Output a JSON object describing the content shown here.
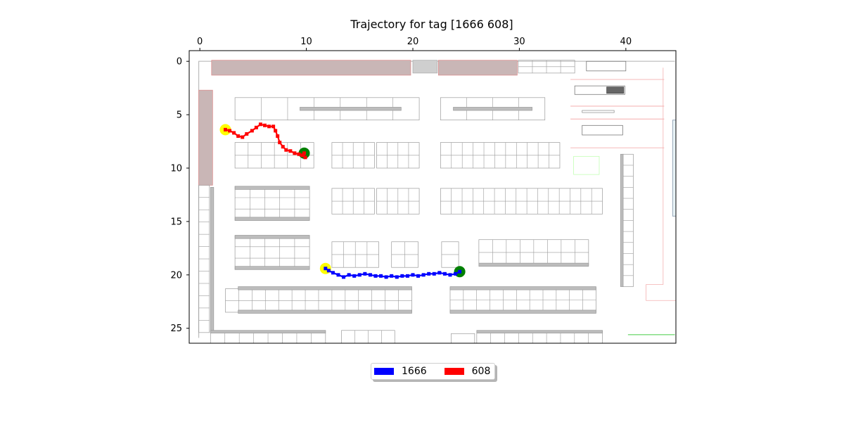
{
  "chart_data": {
    "type": "line",
    "title": "Trajectory for tag [1666  608]",
    "xlabel": "",
    "ylabel": "",
    "xlim": [
      -1,
      44.7
    ],
    "ylim": [
      26.4,
      -1
    ],
    "x_axis_position": "top",
    "y_axis_inverted": true,
    "grid": false,
    "x_ticks": [
      0,
      10,
      20,
      30,
      40
    ],
    "y_ticks": [
      0,
      5,
      10,
      15,
      20,
      25
    ],
    "background": "warehouse floor plan",
    "legend": {
      "placement": "bottom-center-outside",
      "ncol": 2
    },
    "series": [
      {
        "name": "1666",
        "color": "#0000ff",
        "start_marker_color": "#ffff00",
        "end_marker_color": "#008000",
        "points": [
          [
            11.8,
            19.4
          ],
          [
            12.1,
            19.6
          ],
          [
            12.5,
            19.8
          ],
          [
            13.0,
            20.0
          ],
          [
            13.5,
            20.2
          ],
          [
            14.0,
            20.0
          ],
          [
            14.5,
            20.1
          ],
          [
            15.0,
            20.0
          ],
          [
            15.5,
            19.9
          ],
          [
            16.0,
            20.0
          ],
          [
            16.5,
            20.1
          ],
          [
            17.0,
            20.1
          ],
          [
            17.5,
            20.2
          ],
          [
            18.0,
            20.1
          ],
          [
            18.5,
            20.2
          ],
          [
            19.0,
            20.1
          ],
          [
            19.5,
            20.1
          ],
          [
            20.0,
            20.0
          ],
          [
            20.5,
            20.1
          ],
          [
            21.0,
            20.0
          ],
          [
            21.5,
            19.9
          ],
          [
            22.0,
            19.9
          ],
          [
            22.5,
            19.8
          ],
          [
            23.0,
            19.9
          ],
          [
            23.5,
            20.0
          ],
          [
            24.0,
            19.9
          ],
          [
            24.4,
            19.7
          ]
        ]
      },
      {
        "name": "608",
        "color": "#ff0000",
        "start_marker_color": "#ffff00",
        "end_marker_color": "#008000",
        "points": [
          [
            2.4,
            6.4
          ],
          [
            2.8,
            6.5
          ],
          [
            3.2,
            6.7
          ],
          [
            3.6,
            7.0
          ],
          [
            4.0,
            7.1
          ],
          [
            4.4,
            6.8
          ],
          [
            4.9,
            6.5
          ],
          [
            5.3,
            6.2
          ],
          [
            5.7,
            5.9
          ],
          [
            6.1,
            6.0
          ],
          [
            6.5,
            6.1
          ],
          [
            6.9,
            6.1
          ],
          [
            7.1,
            6.5
          ],
          [
            7.3,
            7.0
          ],
          [
            7.5,
            7.6
          ],
          [
            7.8,
            8.0
          ],
          [
            8.1,
            8.3
          ],
          [
            8.5,
            8.4
          ],
          [
            8.9,
            8.6
          ],
          [
            9.3,
            8.7
          ],
          [
            9.6,
            8.8
          ],
          [
            9.9,
            9.0
          ],
          [
            9.7,
            8.8
          ],
          [
            9.8,
            8.6
          ]
        ]
      }
    ]
  }
}
